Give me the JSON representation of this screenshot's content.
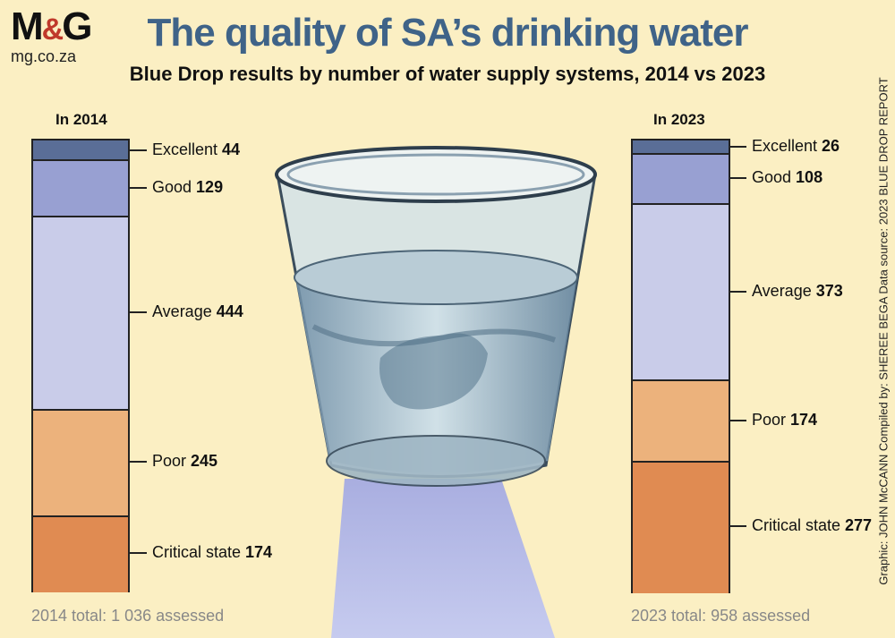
{
  "logo": {
    "mark_left": "M",
    "mark_amp": "&",
    "mark_right": "G",
    "url": "mg.co.za"
  },
  "title": "The quality of SA’s drinking water",
  "subtitle": "Blue Drop results by number of water supply systems, 2014 vs 2023",
  "credit": "Graphic: JOHN McCANN  Compiled by: SHEREE BEGA  Data source: 2023 BLUE DROP REPORT",
  "colors": {
    "excellent": "#5a6e97",
    "good": "#98a0d2",
    "average": "#c9cce9",
    "poor": "#ecb27c",
    "critical": "#e08b52"
  },
  "chart_data": [
    {
      "type": "bar",
      "stacked": true,
      "title": "In 2014",
      "categories": [
        "Excellent",
        "Good",
        "Average",
        "Poor",
        "Critical state"
      ],
      "values": [
        44,
        129,
        444,
        245,
        174
      ],
      "total_label": "2014 total: 1 036 assessed"
    },
    {
      "type": "bar",
      "stacked": true,
      "title": "In 2023",
      "categories": [
        "Excellent",
        "Good",
        "Average",
        "Poor",
        "Critical state"
      ],
      "values": [
        26,
        108,
        373,
        174,
        277
      ],
      "total_label": "2023 total: 958 assessed"
    }
  ]
}
